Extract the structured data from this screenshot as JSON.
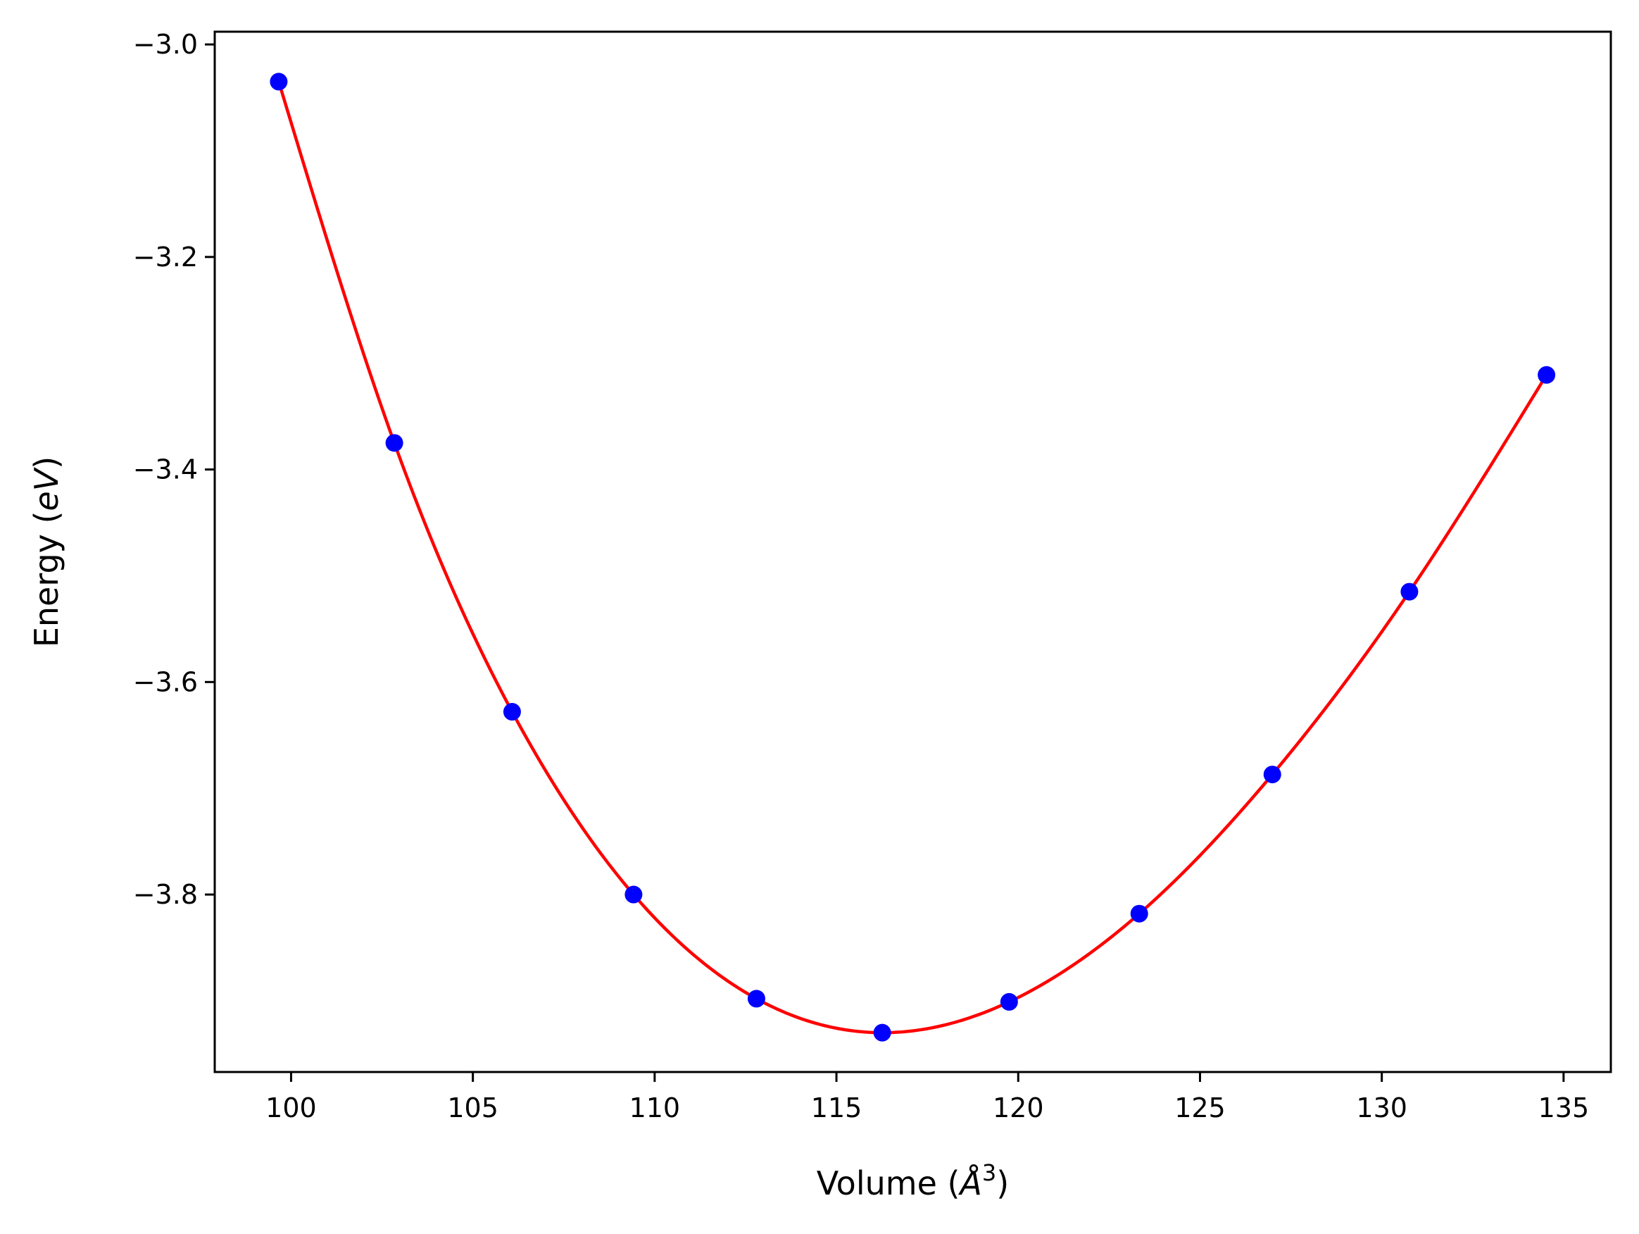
{
  "chart_data": {
    "type": "scatter",
    "xlabel": "Volume",
    "xlabel_unit": "Å",
    "xlabel_unit_exponent": "3",
    "ylabel": "Energy",
    "ylabel_unit": "eV",
    "xlim": [
      97.9,
      136.3
    ],
    "ylim": [
      -3.967,
      -2.988
    ],
    "xticks": [
      100,
      105,
      110,
      115,
      120,
      125,
      130,
      135
    ],
    "xtick_labels": [
      "100",
      "105",
      "110",
      "115",
      "120",
      "125",
      "130",
      "135"
    ],
    "yticks": [
      -3.8,
      -3.6,
      -3.4,
      -3.2,
      -3.0
    ],
    "ytick_labels": [
      "−3.8",
      "−3.6",
      "−3.4",
      "−3.2",
      "−3.0"
    ],
    "grid": false,
    "series": [
      {
        "kind": "points",
        "color": "#0000ff",
        "x": [
          99.66,
          102.84,
          106.08,
          109.42,
          112.8,
          116.26,
          119.75,
          123.33,
          126.99,
          130.76,
          134.53
        ],
        "y": [
          -3.035,
          -3.375,
          -3.628,
          -3.8,
          -3.898,
          -3.93,
          -3.901,
          -3.818,
          -3.687,
          -3.515,
          -3.311
        ]
      },
      {
        "kind": "fit-line",
        "color": "#ff0000"
      }
    ]
  }
}
